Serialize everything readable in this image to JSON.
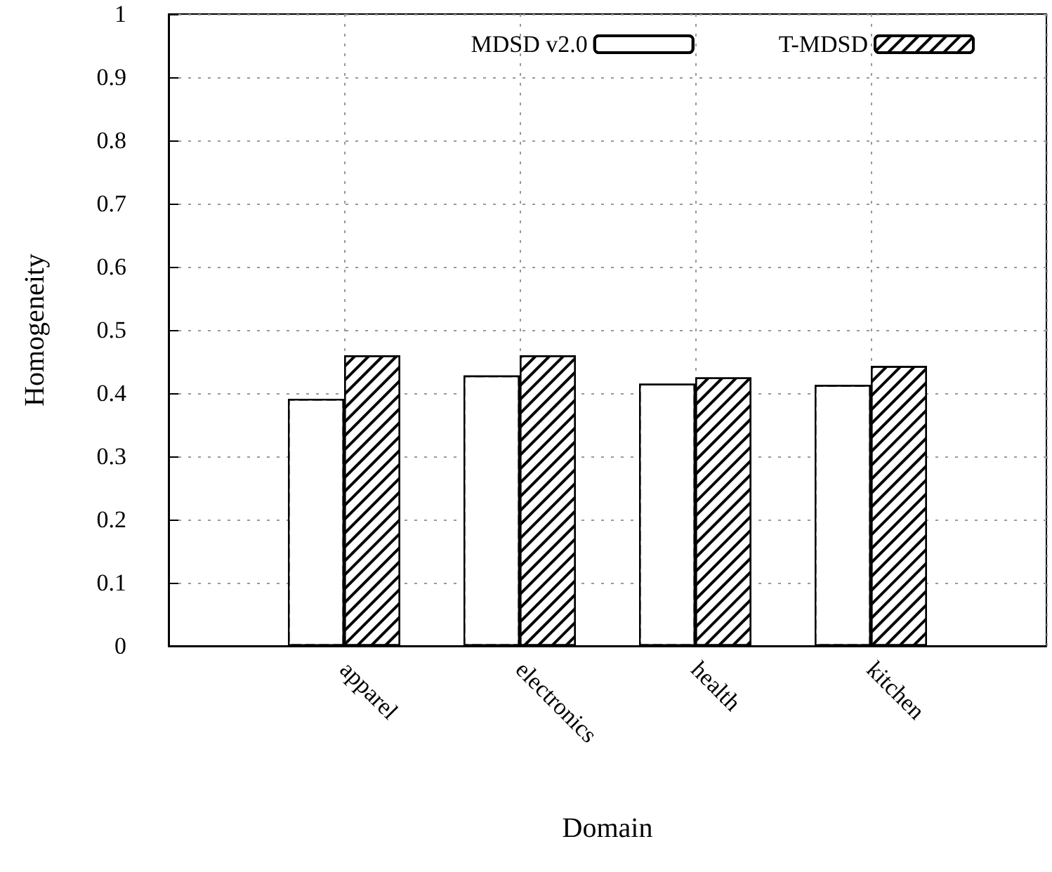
{
  "chart_data": {
    "type": "bar",
    "xlabel": "Domain",
    "ylabel": "Homogeneity",
    "categories": [
      null,
      "apparel",
      "electronics",
      "health",
      "kitchen",
      null
    ],
    "series": [
      {
        "name": "MDSD v2.0",
        "color": "#ffffff",
        "values": [
          null,
          0.391,
          0.428,
          0.415,
          0.413,
          null
        ]
      },
      {
        "name": "T-MDSD",
        "color": "#000000",
        "values": [
          null,
          0.46,
          0.46,
          0.425,
          0.443,
          null
        ]
      }
    ],
    "ylim": [
      0,
      1
    ],
    "yticks": [
      0,
      0.1,
      0.2,
      0.3,
      0.4,
      0.5,
      0.6,
      0.7,
      0.8,
      0.9,
      1
    ],
    "grid": true,
    "legend": "top right"
  }
}
